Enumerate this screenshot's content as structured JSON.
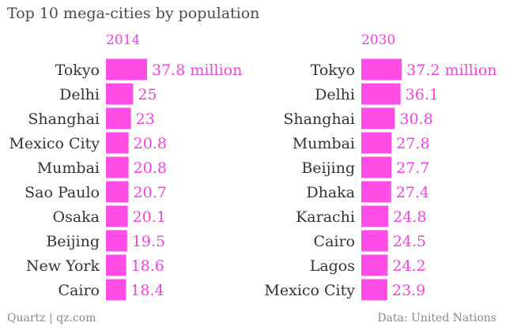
{
  "chart_data": {
    "type": "bar",
    "title": "Top 10 mega-cities by population",
    "unit_suffix": " million",
    "bar_color": "#ff4de6",
    "label_color": "#ee44dd",
    "text_color": "#333333",
    "panels": [
      {
        "name": "2014",
        "categories": [
          "Tokyo",
          "Delhi",
          "Shanghai",
          "Mexico City",
          "Mumbai",
          "Sao Paulo",
          "Osaka",
          "Beijing",
          "New York",
          "Cairo"
        ],
        "values": [
          37.8,
          25,
          23,
          20.8,
          20.8,
          20.7,
          20.1,
          19.5,
          18.6,
          18.4
        ],
        "value_labels": [
          "37.8 million",
          "25",
          "23",
          "20.8",
          "20.8",
          "20.7",
          "20.1",
          "19.5",
          "18.6",
          "18.4"
        ]
      },
      {
        "name": "2030",
        "categories": [
          "Tokyo",
          "Delhi",
          "Shanghai",
          "Mumbai",
          "Beijing",
          "Dhaka",
          "Karachi",
          "Cairo",
          "Lagos",
          "Mexico City"
        ],
        "values": [
          37.2,
          36.1,
          30.8,
          27.8,
          27.7,
          27.4,
          24.8,
          24.5,
          24.2,
          23.9
        ],
        "value_labels": [
          "37.2 million",
          "36.1",
          "30.8",
          "27.8",
          "27.7",
          "27.4",
          "24.8",
          "24.5",
          "24.2",
          "23.9"
        ]
      }
    ],
    "xlim": [
      0,
      37.8
    ]
  },
  "footer": {
    "source_left": "Quartz | qz.com",
    "source_right": "Data: United Nations"
  }
}
